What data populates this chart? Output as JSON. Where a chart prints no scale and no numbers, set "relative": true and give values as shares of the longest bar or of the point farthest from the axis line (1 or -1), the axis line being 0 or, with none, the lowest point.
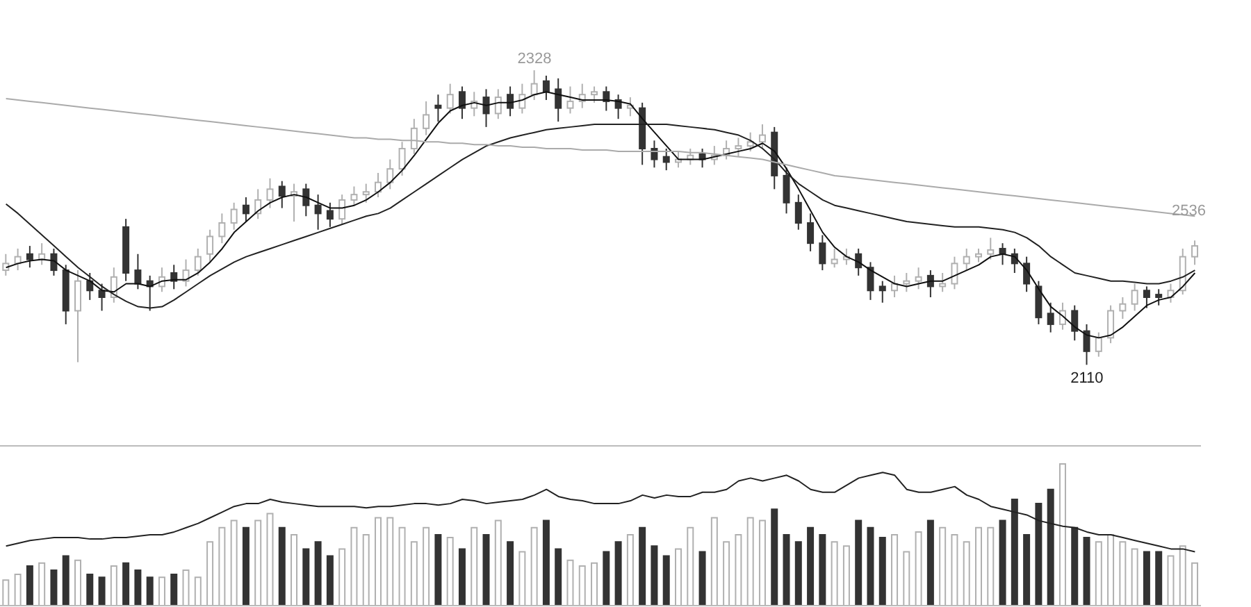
{
  "chart_data": [
    {
      "type": "candlestick",
      "categories": [
        null,
        null,
        null,
        null,
        null,
        null,
        null,
        null,
        null,
        null,
        null,
        null,
        null,
        null,
        null,
        null,
        null,
        null,
        null,
        null,
        null,
        null,
        null,
        null,
        null,
        null,
        null,
        null,
        null,
        null,
        null,
        null,
        null,
        null,
        null,
        null,
        null,
        null,
        null,
        null,
        null,
        null,
        null,
        null,
        null,
        null,
        null,
        null,
        null,
        null,
        null,
        null,
        null,
        null,
        null,
        null,
        null,
        null,
        null,
        null,
        null,
        null,
        null,
        null,
        null,
        null,
        null,
        null,
        null,
        null,
        null,
        null,
        null,
        null,
        null,
        null,
        null,
        null,
        null,
        null,
        null,
        null,
        null,
        null,
        null,
        null,
        null,
        null,
        null,
        null,
        null,
        null,
        null,
        null,
        null,
        null,
        null,
        null,
        null,
        null
      ],
      "ohlc": [
        [
          2180,
          2192,
          2176,
          2185
        ],
        [
          2185,
          2196,
          2180,
          2190
        ],
        [
          2192,
          2198,
          2182,
          2188
        ],
        [
          2188,
          2200,
          2184,
          2192
        ],
        [
          2192,
          2196,
          2176,
          2180
        ],
        [
          2180,
          2184,
          2140,
          2150
        ],
        [
          2150,
          2180,
          2112,
          2172
        ],
        [
          2172,
          2178,
          2158,
          2165
        ],
        [
          2165,
          2170,
          2150,
          2160
        ],
        [
          2160,
          2182,
          2156,
          2175
        ],
        [
          2212,
          2218,
          2172,
          2178
        ],
        [
          2180,
          2192,
          2166,
          2170
        ],
        [
          2172,
          2176,
          2150,
          2168
        ],
        [
          2168,
          2182,
          2164,
          2175
        ],
        [
          2178,
          2184,
          2166,
          2172
        ],
        [
          2172,
          2188,
          2168,
          2180
        ],
        [
          2180,
          2196,
          2176,
          2190
        ],
        [
          2192,
          2210,
          2186,
          2205
        ],
        [
          2205,
          2222,
          2200,
          2215
        ],
        [
          2215,
          2230,
          2210,
          2225
        ],
        [
          2228,
          2234,
          2216,
          2222
        ],
        [
          2222,
          2240,
          2218,
          2232
        ],
        [
          2232,
          2248,
          2226,
          2240
        ],
        [
          2242,
          2246,
          2226,
          2235
        ],
        [
          2235,
          2244,
          2216,
          2238
        ],
        [
          2240,
          2244,
          2220,
          2228
        ],
        [
          2228,
          2236,
          2210,
          2222
        ],
        [
          2224,
          2230,
          2212,
          2218
        ],
        [
          2218,
          2236,
          2214,
          2232
        ],
        [
          2232,
          2242,
          2228,
          2236
        ],
        [
          2236,
          2244,
          2230,
          2238
        ],
        [
          2238,
          2252,
          2234,
          2245
        ],
        [
          2245,
          2262,
          2240,
          2255
        ],
        [
          2255,
          2275,
          2250,
          2270
        ],
        [
          2270,
          2292,
          2266,
          2285
        ],
        [
          2285,
          2305,
          2280,
          2295
        ],
        [
          2302,
          2310,
          2290,
          2300
        ],
        [
          2300,
          2318,
          2296,
          2310
        ],
        [
          2312,
          2316,
          2292,
          2300
        ],
        [
          2300,
          2312,
          2294,
          2305
        ],
        [
          2308,
          2314,
          2286,
          2296
        ],
        [
          2296,
          2314,
          2292,
          2308
        ],
        [
          2310,
          2316,
          2294,
          2300
        ],
        [
          2300,
          2318,
          2296,
          2310
        ],
        [
          2310,
          2328,
          2306,
          2318
        ],
        [
          2320,
          2324,
          2306,
          2312
        ],
        [
          2314,
          2322,
          2290,
          2300
        ],
        [
          2300,
          2316,
          2296,
          2305
        ],
        [
          2305,
          2318,
          2300,
          2310
        ],
        [
          2310,
          2316,
          2304,
          2312
        ],
        [
          2312,
          2316,
          2298,
          2305
        ],
        [
          2306,
          2310,
          2292,
          2300
        ],
        [
          2300,
          2308,
          2294,
          2302
        ],
        [
          2300,
          2304,
          2258,
          2270
        ],
        [
          2270,
          2276,
          2256,
          2262
        ],
        [
          2264,
          2270,
          2254,
          2260
        ],
        [
          2260,
          2268,
          2256,
          2262
        ],
        [
          2262,
          2270,
          2258,
          2265
        ],
        [
          2266,
          2270,
          2256,
          2262
        ],
        [
          2262,
          2272,
          2258,
          2265
        ],
        [
          2265,
          2276,
          2262,
          2270
        ],
        [
          2270,
          2278,
          2264,
          2272
        ],
        [
          2272,
          2282,
          2268,
          2275
        ],
        [
          2275,
          2288,
          2270,
          2280
        ],
        [
          2282,
          2286,
          2240,
          2250
        ],
        [
          2250,
          2256,
          2222,
          2230
        ],
        [
          2230,
          2236,
          2210,
          2215
        ],
        [
          2215,
          2222,
          2194,
          2200
        ],
        [
          2200,
          2206,
          2180,
          2185
        ],
        [
          2185,
          2196,
          2182,
          2188
        ],
        [
          2188,
          2196,
          2184,
          2190
        ],
        [
          2192,
          2196,
          2176,
          2182
        ],
        [
          2182,
          2186,
          2158,
          2165
        ],
        [
          2168,
          2172,
          2156,
          2165
        ],
        [
          2165,
          2176,
          2160,
          2170
        ],
        [
          2170,
          2178,
          2164,
          2172
        ],
        [
          2172,
          2182,
          2166,
          2175
        ],
        [
          2176,
          2180,
          2160,
          2168
        ],
        [
          2168,
          2178,
          2164,
          2170
        ],
        [
          2170,
          2190,
          2166,
          2185
        ],
        [
          2185,
          2196,
          2180,
          2190
        ],
        [
          2190,
          2196,
          2186,
          2192
        ],
        [
          2192,
          2204,
          2188,
          2195
        ],
        [
          2196,
          2200,
          2184,
          2192
        ],
        [
          2192,
          2196,
          2178,
          2185
        ],
        [
          2185,
          2190,
          2164,
          2170
        ],
        [
          2168,
          2172,
          2140,
          2145
        ],
        [
          2148,
          2156,
          2134,
          2140
        ],
        [
          2140,
          2156,
          2136,
          2150
        ],
        [
          2150,
          2154,
          2128,
          2135
        ],
        [
          2135,
          2140,
          2110,
          2120
        ],
        [
          2120,
          2134,
          2116,
          2130
        ],
        [
          2130,
          2154,
          2126,
          2150
        ],
        [
          2150,
          2160,
          2144,
          2155
        ],
        [
          2155,
          2170,
          2150,
          2165
        ],
        [
          2165,
          2168,
          2152,
          2160
        ],
        [
          2162,
          2166,
          2154,
          2160
        ],
        [
          2160,
          2170,
          2156,
          2165
        ],
        [
          2165,
          2196,
          2162,
          2190
        ],
        [
          2190,
          2202,
          2184,
          2198
        ]
      ],
      "colors": [
        "#b0b0b0",
        "#b0b0b0",
        "#333333",
        "#b0b0b0",
        "#333333",
        "#333333",
        "#b0b0b0",
        "#333333",
        "#333333",
        "#b0b0b0",
        "#333333",
        "#333333",
        "#333333",
        "#b0b0b0",
        "#333333",
        "#b0b0b0",
        "#b0b0b0",
        "#b0b0b0",
        "#b0b0b0",
        "#b0b0b0",
        "#333333",
        "#b0b0b0",
        "#b0b0b0",
        "#333333",
        "#b0b0b0",
        "#333333",
        "#333333",
        "#333333",
        "#b0b0b0",
        "#b0b0b0",
        "#b0b0b0",
        "#b0b0b0",
        "#b0b0b0",
        "#b0b0b0",
        "#b0b0b0",
        "#b0b0b0",
        "#333333",
        "#b0b0b0",
        "#333333",
        "#b0b0b0",
        "#333333",
        "#b0b0b0",
        "#333333",
        "#b0b0b0",
        "#b0b0b0",
        "#333333",
        "#333333",
        "#b0b0b0",
        "#b0b0b0",
        "#b0b0b0",
        "#333333",
        "#333333",
        "#b0b0b0",
        "#333333",
        "#333333",
        "#333333",
        "#b0b0b0",
        "#b0b0b0",
        "#333333",
        "#b0b0b0",
        "#b0b0b0",
        "#b0b0b0",
        "#b0b0b0",
        "#b0b0b0",
        "#333333",
        "#333333",
        "#333333",
        "#333333",
        "#333333",
        "#b0b0b0",
        "#b0b0b0",
        "#333333",
        "#333333",
        "#333333",
        "#b0b0b0",
        "#b0b0b0",
        "#b0b0b0",
        "#333333",
        "#b0b0b0",
        "#b0b0b0",
        "#b0b0b0",
        "#b0b0b0",
        "#b0b0b0",
        "#333333",
        "#333333",
        "#333333",
        "#333333",
        "#333333",
        "#b0b0b0",
        "#333333",
        "#333333",
        "#b0b0b0",
        "#b0b0b0",
        "#b0b0b0",
        "#b0b0b0",
        "#333333",
        "#333333",
        "#b0b0b0",
        "#b0b0b0",
        "#b0b0b0"
      ],
      "series": [
        {
          "type": "line",
          "color": "#111111",
          "values": [
            2182,
            2185,
            2187,
            2188,
            2187,
            2180,
            2176,
            2172,
            2165,
            2164,
            2170,
            2170,
            2168,
            2172,
            2173,
            2173,
            2178,
            2186,
            2196,
            2208,
            2216,
            2224,
            2230,
            2234,
            2236,
            2234,
            2230,
            2226,
            2226,
            2228,
            2232,
            2238,
            2245,
            2254,
            2265,
            2277,
            2289,
            2298,
            2302,
            2304,
            2302,
            2304,
            2304,
            2306,
            2310,
            2312,
            2310,
            2308,
            2306,
            2306,
            2306,
            2305,
            2303,
            2292,
            2282,
            2272,
            2262,
            2262,
            2262,
            2264,
            2266,
            2268,
            2270,
            2274,
            2268,
            2255,
            2240,
            2224,
            2208,
            2197,
            2190,
            2186,
            2180,
            2175,
            2170,
            2168,
            2170,
            2172,
            2172,
            2176,
            2180,
            2184,
            2190,
            2192,
            2190,
            2180,
            2166,
            2153,
            2146,
            2138,
            2132,
            2130,
            2132,
            2138,
            2146,
            2154,
            2158,
            2160,
            2168,
            2178
          ]
        },
        {
          "type": "line",
          "color": "#222222",
          "values": [
            2229,
            2222,
            2214,
            2206,
            2198,
            2190,
            2182,
            2175,
            2168,
            2162,
            2157,
            2153,
            2152,
            2153,
            2158,
            2164,
            2170,
            2176,
            2181,
            2186,
            2190,
            2193,
            2196,
            2199,
            2202,
            2205,
            2208,
            2211,
            2214,
            2217,
            2220,
            2222,
            2226,
            2232,
            2238,
            2244,
            2250,
            2256,
            2262,
            2267,
            2272,
            2275,
            2278,
            2280,
            2282,
            2284,
            2285,
            2286,
            2287,
            2288,
            2288,
            2288,
            2288,
            2288,
            2288,
            2288,
            2287,
            2286,
            2285,
            2284,
            2282,
            2280,
            2276,
            2270,
            2262,
            2252,
            2244,
            2238,
            2232,
            2228,
            2226,
            2224,
            2222,
            2220,
            2218,
            2216,
            2215,
            2214,
            2213,
            2212,
            2212,
            2212,
            2211,
            2210,
            2208,
            2204,
            2198,
            2190,
            2184,
            2178,
            2176,
            2174,
            2172,
            2172,
            2171,
            2170,
            2170,
            2172,
            2175,
            2180
          ]
        },
        {
          "type": "line",
          "color": "#aaaaaa",
          "values": [
            2307,
            2306,
            2305,
            2304,
            2303,
            2302,
            2301,
            2300,
            2299,
            2298,
            2297,
            2296,
            2295,
            2294,
            2293,
            2292,
            2291,
            2290,
            2289,
            2288,
            2287,
            2286,
            2285,
            2284,
            2283,
            2282,
            2281,
            2280,
            2279,
            2278,
            2278,
            2277,
            2277,
            2276,
            2276,
            2275,
            2275,
            2274,
            2274,
            2273,
            2273,
            2272,
            2272,
            2271,
            2271,
            2270,
            2270,
            2270,
            2269,
            2269,
            2269,
            2268,
            2268,
            2268,
            2268,
            2268,
            2268,
            2267,
            2267,
            2266,
            2265,
            2264,
            2263,
            2262,
            2260,
            2258,
            2256,
            2254,
            2252,
            2250,
            2249,
            2248,
            2247,
            2246,
            2245,
            2244,
            2243,
            2242,
            2241,
            2240,
            2239,
            2238,
            2237,
            2236,
            2235,
            2234,
            2233,
            2232,
            2231,
            2230,
            2229,
            2228,
            2227,
            2226,
            2225,
            2224,
            2223,
            2222,
            2221,
            2220
          ]
        }
      ],
      "ylim": [
        2050,
        2380
      ],
      "annotations": [
        {
          "text": "2328",
          "y": 2328
        },
        {
          "text": "2110",
          "y": 2110
        },
        "2536"
      ]
    },
    {
      "type": "bar",
      "relative": true,
      "categories": [
        null,
        null,
        null,
        null,
        null,
        null,
        null,
        null,
        null,
        null,
        null,
        null,
        null,
        null,
        null,
        null,
        null,
        null,
        null,
        null,
        null,
        null,
        null,
        null,
        null,
        null,
        null,
        null,
        null,
        null,
        null,
        null,
        null,
        null,
        null,
        null,
        null,
        null,
        null,
        null,
        null,
        null,
        null,
        null,
        null,
        null,
        null,
        null,
        null,
        null,
        null,
        null,
        null,
        null,
        null,
        null,
        null,
        null,
        null,
        null,
        null,
        null,
        null,
        null,
        null,
        null,
        null,
        null,
        null,
        null,
        null,
        null,
        null,
        null,
        null,
        null,
        null,
        null,
        null,
        null,
        null,
        null,
        null,
        null,
        null,
        null,
        null,
        null,
        null,
        null,
        null,
        null,
        null,
        null,
        null,
        null,
        null,
        null,
        null,
        null
      ],
      "series": [
        {
          "type": "bar",
          "colors": [
            "#b0b0b0",
            "#b0b0b0",
            "#333333",
            "#b0b0b0",
            "#333333",
            "#333333",
            "#b0b0b0",
            "#333333",
            "#333333",
            "#b0b0b0",
            "#333333",
            "#333333",
            "#333333",
            "#b0b0b0",
            "#333333",
            "#b0b0b0",
            "#b0b0b0",
            "#b0b0b0",
            "#b0b0b0",
            "#b0b0b0",
            "#333333",
            "#b0b0b0",
            "#b0b0b0",
            "#333333",
            "#b0b0b0",
            "#333333",
            "#333333",
            "#333333",
            "#b0b0b0",
            "#b0b0b0",
            "#b0b0b0",
            "#b0b0b0",
            "#b0b0b0",
            "#b0b0b0",
            "#b0b0b0",
            "#b0b0b0",
            "#333333",
            "#b0b0b0",
            "#333333",
            "#b0b0b0",
            "#333333",
            "#b0b0b0",
            "#333333",
            "#b0b0b0",
            "#b0b0b0",
            "#333333",
            "#333333",
            "#b0b0b0",
            "#b0b0b0",
            "#b0b0b0",
            "#333333",
            "#333333",
            "#b0b0b0",
            "#333333",
            "#333333",
            "#333333",
            "#b0b0b0",
            "#b0b0b0",
            "#333333",
            "#b0b0b0",
            "#b0b0b0",
            "#b0b0b0",
            "#b0b0b0",
            "#b0b0b0",
            "#333333",
            "#333333",
            "#333333",
            "#333333",
            "#333333",
            "#b0b0b0",
            "#b0b0b0",
            "#333333",
            "#333333",
            "#333333",
            "#b0b0b0",
            "#b0b0b0",
            "#b0b0b0",
            "#333333",
            "#b0b0b0",
            "#b0b0b0",
            "#b0b0b0",
            "#b0b0b0",
            "#b0b0b0",
            "#333333",
            "#333333",
            "#333333",
            "#333333",
            "#333333",
            "#b0b0b0",
            "#333333",
            "#333333",
            "#b0b0b0",
            "#b0b0b0",
            "#b0b0b0",
            "#b0b0b0",
            "#333333",
            "#333333",
            "#b0b0b0",
            "#b0b0b0",
            "#b0b0b0"
          ],
          "values": [
            0.18,
            0.22,
            0.28,
            0.3,
            0.25,
            0.35,
            0.32,
            0.22,
            0.2,
            0.28,
            0.3,
            0.25,
            0.2,
            0.2,
            0.22,
            0.25,
            0.2,
            0.45,
            0.55,
            0.6,
            0.55,
            0.6,
            0.65,
            0.55,
            0.5,
            0.4,
            0.45,
            0.35,
            0.4,
            0.55,
            0.5,
            0.62,
            0.62,
            0.55,
            0.45,
            0.55,
            0.5,
            0.48,
            0.4,
            0.55,
            0.5,
            0.6,
            0.45,
            0.38,
            0.55,
            0.6,
            0.4,
            0.32,
            0.28,
            0.3,
            0.38,
            0.45,
            0.5,
            0.55,
            0.42,
            0.35,
            0.4,
            0.55,
            0.38,
            0.62,
            0.45,
            0.5,
            0.62,
            0.6,
            0.68,
            0.5,
            0.45,
            0.55,
            0.5,
            0.45,
            0.42,
            0.6,
            0.55,
            0.48,
            0.5,
            0.38,
            0.52,
            0.6,
            0.55,
            0.5,
            0.45,
            0.55,
            0.55,
            0.6,
            0.75,
            0.5,
            0.72,
            0.82,
            1.0,
            0.55,
            0.48,
            0.45,
            0.5,
            0.45,
            0.4,
            0.38,
            0.38,
            0.35,
            0.42,
            0.3
          ]
        },
        {
          "type": "line",
          "color": "#222222",
          "values": [
            0.42,
            0.44,
            0.46,
            0.47,
            0.48,
            0.48,
            0.48,
            0.47,
            0.47,
            0.48,
            0.48,
            0.49,
            0.5,
            0.5,
            0.52,
            0.55,
            0.58,
            0.62,
            0.66,
            0.7,
            0.72,
            0.72,
            0.75,
            0.73,
            0.72,
            0.71,
            0.7,
            0.7,
            0.7,
            0.7,
            0.69,
            0.7,
            0.7,
            0.71,
            0.72,
            0.72,
            0.71,
            0.72,
            0.75,
            0.74,
            0.72,
            0.73,
            0.74,
            0.75,
            0.78,
            0.82,
            0.77,
            0.75,
            0.74,
            0.72,
            0.72,
            0.72,
            0.74,
            0.78,
            0.76,
            0.78,
            0.77,
            0.77,
            0.8,
            0.8,
            0.82,
            0.88,
            0.9,
            0.88,
            0.9,
            0.92,
            0.88,
            0.82,
            0.8,
            0.8,
            0.85,
            0.9,
            0.92,
            0.94,
            0.92,
            0.82,
            0.8,
            0.8,
            0.82,
            0.84,
            0.78,
            0.75,
            0.7,
            0.68,
            0.66,
            0.64,
            0.6,
            0.58,
            0.56,
            0.55,
            0.52,
            0.5,
            0.5,
            0.48,
            0.46,
            0.44,
            0.42,
            0.4,
            0.4,
            0.38
          ]
        }
      ]
    }
  ]
}
